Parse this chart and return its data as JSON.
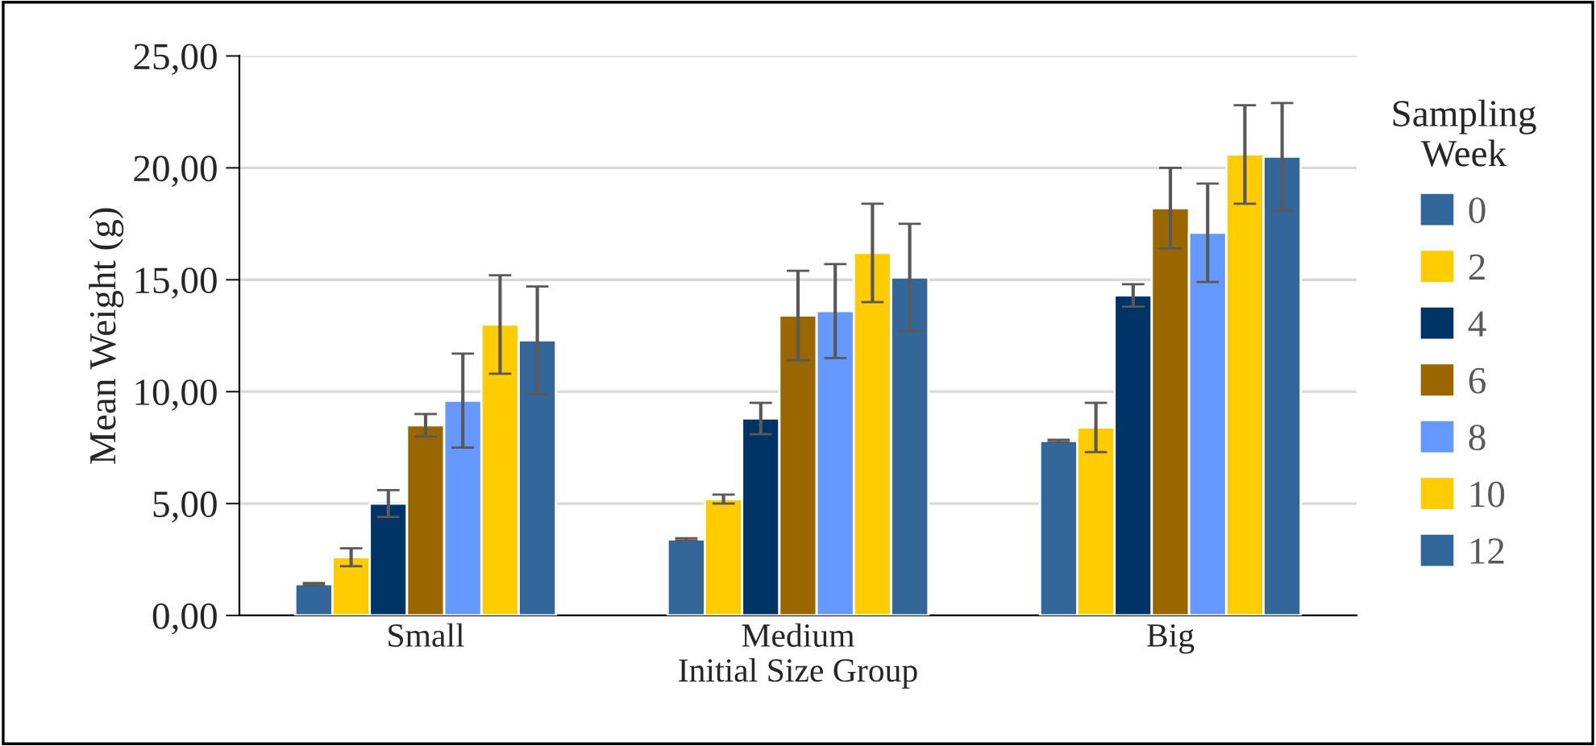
{
  "chart_data": {
    "type": "bar",
    "xlabel": "Initial Size Group",
    "ylabel": "Mean Weight (g)",
    "legend_title": "Sampling Week",
    "categories": [
      "Small",
      "Medium",
      "Big"
    ],
    "series": [
      {
        "name": "0",
        "color": "#336699",
        "values": [
          1.4,
          3.4,
          7.8
        ],
        "errors": [
          0.05,
          0.05,
          0.05
        ]
      },
      {
        "name": "2",
        "color": "#ffcc00",
        "values": [
          2.6,
          5.2,
          8.4
        ],
        "errors": [
          0.4,
          0.2,
          1.1
        ]
      },
      {
        "name": "4",
        "color": "#003366",
        "values": [
          5.0,
          8.8,
          14.3
        ],
        "errors": [
          0.6,
          0.7,
          0.5
        ]
      },
      {
        "name": "6",
        "color": "#996600",
        "values": [
          8.5,
          13.4,
          18.2
        ],
        "errors": [
          0.5,
          2.0,
          1.8
        ]
      },
      {
        "name": "8",
        "color": "#6699ff",
        "values": [
          9.6,
          13.6,
          17.1
        ],
        "errors": [
          2.1,
          2.1,
          2.2
        ]
      },
      {
        "name": "10",
        "color": "#ffcc00",
        "values": [
          13.0,
          16.2,
          20.6
        ],
        "errors": [
          2.2,
          2.2,
          2.2
        ]
      },
      {
        "name": "12",
        "color": "#336699",
        "values": [
          12.3,
          15.1,
          20.5
        ],
        "errors": [
          2.4,
          2.4,
          2.4
        ]
      }
    ],
    "ylim": [
      0,
      25
    ],
    "yticks": [
      {
        "value": 0,
        "label": "0,00"
      },
      {
        "value": 5,
        "label": "5,00"
      },
      {
        "value": 10,
        "label": "10,00"
      },
      {
        "value": 15,
        "label": "15,00"
      },
      {
        "value": 20,
        "label": "20,00"
      },
      {
        "value": 25,
        "label": "25,00"
      }
    ],
    "grid": "y",
    "legend": "right"
  }
}
